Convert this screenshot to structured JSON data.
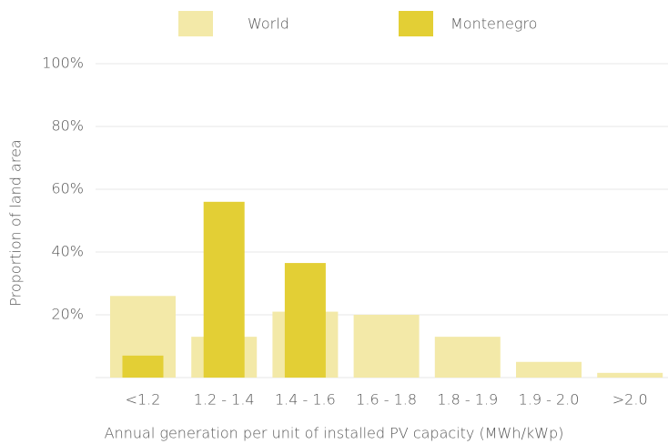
{
  "chart_data": {
    "type": "bar",
    "x_label": "Annual generation per unit of installed PV capacity (MWh/kWp)",
    "y_label": "Proportion of land area",
    "categories": [
      "<1.2",
      "1.2 - 1.4",
      "1.4 - 1.6",
      "1.6 - 1.8",
      "1.8 - 1.9",
      "1.9 - 2.0",
      ">2.0"
    ],
    "series": [
      {
        "name": "World",
        "color": "#f3e9a8",
        "values": [
          26,
          13,
          21,
          20,
          13,
          5,
          1.5
        ]
      },
      {
        "name": "Montenegro",
        "color": "#e3cf35",
        "values": [
          7,
          56,
          36.5,
          0,
          0,
          0,
          0
        ]
      }
    ],
    "ylim": [
      0,
      100
    ],
    "yticks": [
      {
        "value": 20,
        "label": "20%"
      },
      {
        "value": 40,
        "label": "40%"
      },
      {
        "value": 60,
        "label": "60%"
      },
      {
        "value": 80,
        "label": "80%"
      },
      {
        "value": 100,
        "label": "100%"
      }
    ],
    "grid": true
  }
}
